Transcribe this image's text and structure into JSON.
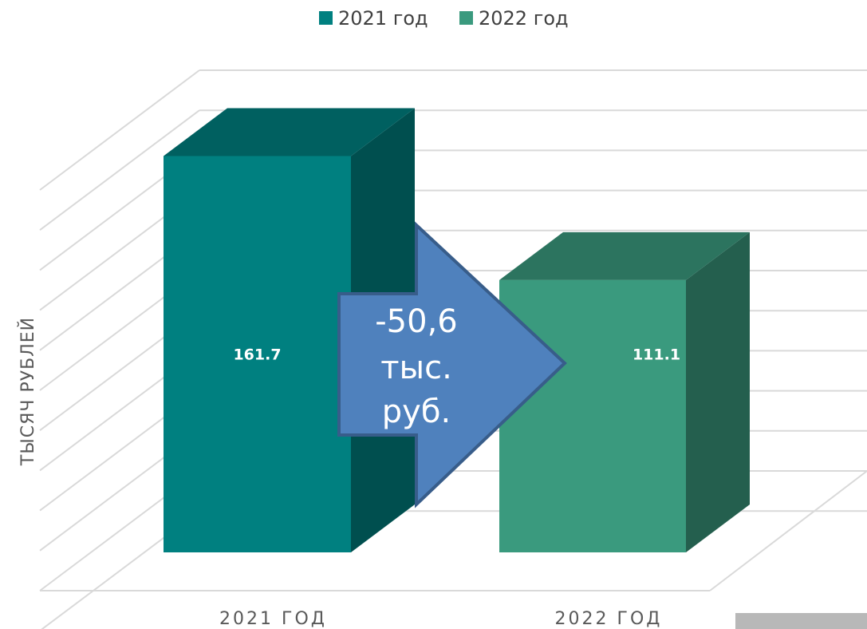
{
  "chart_data": {
    "type": "bar3d",
    "categories": [
      "2021 ГОД",
      "2022 ГОД"
    ],
    "series": [
      {
        "name": "2021 год",
        "color": "#008080",
        "values": [
          161.7,
          null
        ]
      },
      {
        "name": "2022 год",
        "color": "#3a9a7e",
        "values": [
          null,
          111.1
        ]
      }
    ],
    "y_label": "ТЫСЯЧ РУБЛЕЙ",
    "ylim": [
      0,
      170
    ],
    "grid": true,
    "legend": "top",
    "annotation": [
      "-50,6",
      "тыс.",
      "руб."
    ]
  }
}
